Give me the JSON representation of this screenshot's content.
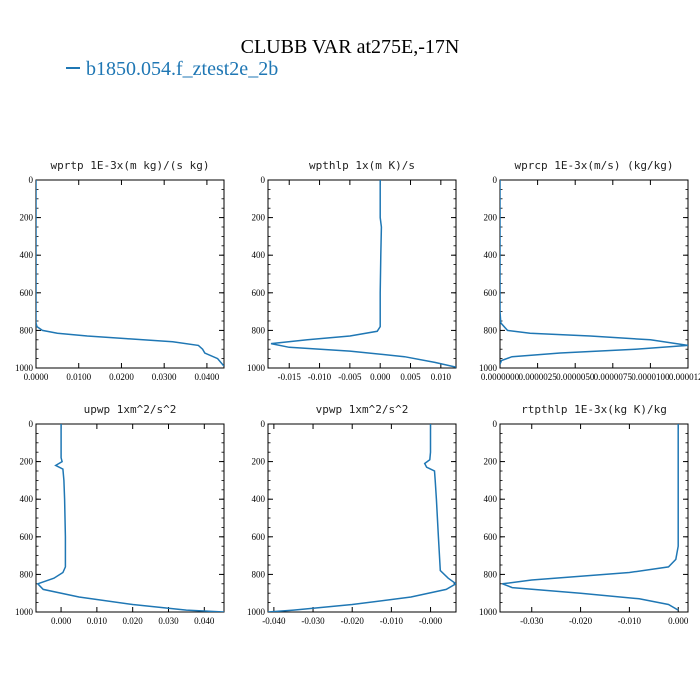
{
  "title": "CLUBB VAR at275E,-17N",
  "legend": {
    "label": "b1850.054.f_ztest2e_2b",
    "color": "#1f77b4"
  },
  "chart_data": [
    {
      "type": "line",
      "title": "wprtp  1E-3x(m kg)/(s kg)",
      "xlim": [
        0.0,
        0.044
      ],
      "ylim": [
        1000,
        0
      ],
      "xticks": [
        0.0,
        0.01,
        0.02,
        0.03,
        0.04
      ],
      "xticklabels": [
        "0.0000",
        "0.0100",
        "0.0200",
        "0.0300",
        "0.0400"
      ],
      "yticks": [
        0,
        200,
        400,
        600,
        800,
        1000
      ],
      "yticklabels": [
        "0",
        "200",
        "400",
        "600",
        "800",
        "1000"
      ],
      "series": [
        {
          "x": [
            0.0,
            0.0,
            0.0,
            0.0,
            0.0,
            0.0,
            0.0002,
            0.0015,
            0.005,
            0.012,
            0.022,
            0.032,
            0.038,
            0.039,
            0.0395,
            0.0425,
            0.044
          ],
          "y": [
            0,
            200,
            400,
            600,
            700,
            760,
            780,
            800,
            815,
            830,
            845,
            860,
            880,
            900,
            920,
            950,
            990
          ]
        }
      ]
    },
    {
      "type": "line",
      "title": "wpthlp  1x(m K)/s",
      "xlim": [
        -0.0185,
        0.0125
      ],
      "ylim": [
        1000,
        0
      ],
      "xticks": [
        -0.015,
        -0.01,
        -0.005,
        0.0,
        0.005,
        0.01
      ],
      "xticklabels": [
        "-0.015",
        "-0.010",
        "-0.005",
        "0.000",
        "0.005",
        "0.010"
      ],
      "yticks": [
        0,
        200,
        400,
        600,
        800,
        1000
      ],
      "yticklabels": [
        "0",
        "200",
        "400",
        "600",
        "800",
        "1000"
      ],
      "series": [
        {
          "x": [
            0.0,
            0.0,
            0.0002,
            0.0001,
            0.0,
            0.0,
            0.0,
            -0.0005,
            -0.005,
            -0.012,
            -0.018,
            -0.015,
            -0.005,
            0.004,
            0.009,
            0.0125
          ],
          "y": [
            0,
            200,
            250,
            400,
            600,
            760,
            780,
            805,
            830,
            850,
            870,
            890,
            910,
            940,
            970,
            995
          ]
        }
      ]
    },
    {
      "type": "line",
      "title": "wprcp  1E-3x(m/s) (kg/kg)",
      "xlim": [
        0.0,
        1.25e-05
      ],
      "ylim": [
        1000,
        0
      ],
      "xticks": [
        0.0,
        2.5e-06,
        5e-06,
        7.5e-06,
        1e-05,
        1.25e-05
      ],
      "xticklabels": [
        "0.0000000",
        "0.0000025",
        "0.0000050",
        "0.0000075",
        "0.0000100",
        "0.0000125"
      ],
      "yticks": [
        0,
        200,
        400,
        600,
        800,
        1000
      ],
      "yticklabels": [
        "0",
        "200",
        "400",
        "600",
        "800",
        "1000"
      ],
      "series": [
        {
          "x": [
            0.0,
            0.0,
            0.0,
            0.0,
            5e-08,
            5e-07,
            2e-06,
            6e-06,
            1e-05,
            1.25e-05,
            9e-06,
            4e-06,
            8e-07,
            1e-07,
            0.0
          ],
          "y": [
            0,
            200,
            400,
            700,
            760,
            800,
            815,
            830,
            850,
            880,
            900,
            920,
            940,
            960,
            980
          ]
        }
      ]
    },
    {
      "type": "line",
      "title": "upwp  1xm^2/s^2",
      "xlim": [
        -0.007,
        0.0455
      ],
      "ylim": [
        1000,
        0
      ],
      "xticks": [
        0.0,
        0.01,
        0.02,
        0.03,
        0.04
      ],
      "xticklabels": [
        "0.000",
        "0.010",
        "0.020",
        "0.030",
        "0.040"
      ],
      "yticks": [
        0,
        200,
        400,
        600,
        800,
        1000
      ],
      "yticklabels": [
        "0",
        "200",
        "400",
        "600",
        "800",
        "1000"
      ],
      "series": [
        {
          "x": [
            0.0,
            0.0,
            0.0,
            0.0003,
            -0.0015,
            0.0005,
            0.0008,
            0.001,
            0.0012,
            0.0012,
            0.0005,
            -0.002,
            -0.0065,
            -0.005,
            0.005,
            0.02,
            0.035,
            0.0455
          ],
          "y": [
            0,
            150,
            180,
            200,
            220,
            240,
            300,
            400,
            600,
            760,
            790,
            820,
            850,
            880,
            920,
            960,
            990,
            1000
          ]
        }
      ]
    },
    {
      "type": "line",
      "title": "vpwp  1xm^2/s^2",
      "xlim": [
        -0.0415,
        0.0065
      ],
      "ylim": [
        1000,
        0
      ],
      "xticks": [
        -0.04,
        -0.03,
        -0.02,
        -0.01,
        0.0
      ],
      "xticklabels": [
        "-0.040",
        "-0.030",
        "-0.020",
        "-0.010",
        "-0.000"
      ],
      "yticks": [
        0,
        200,
        400,
        600,
        800,
        1000
      ],
      "yticklabels": [
        "0",
        "200",
        "400",
        "600",
        "800",
        "1000"
      ],
      "series": [
        {
          "x": [
            0.0,
            0.0,
            -0.0002,
            -0.0015,
            -0.001,
            0.001,
            0.0012,
            0.0015,
            0.002,
            0.0025,
            0.0045,
            0.0065,
            0.004,
            -0.005,
            -0.02,
            -0.035,
            -0.0415
          ],
          "y": [
            0,
            150,
            190,
            210,
            230,
            250,
            300,
            400,
            600,
            780,
            820,
            850,
            880,
            920,
            960,
            990,
            1000
          ]
        }
      ]
    },
    {
      "type": "line",
      "title": "rtpthlp  1E-3x(kg K)/kg",
      "xlim": [
        -0.0365,
        0.002
      ],
      "ylim": [
        1000,
        0
      ],
      "xticks": [
        -0.03,
        -0.02,
        -0.01,
        0.0
      ],
      "xticklabels": [
        "-0.030",
        "-0.020",
        "-0.010",
        "0.000"
      ],
      "yticks": [
        0,
        200,
        400,
        600,
        800,
        1000
      ],
      "yticklabels": [
        "0",
        "200",
        "400",
        "600",
        "800",
        "1000"
      ],
      "series": [
        {
          "x": [
            0.0,
            0.0,
            0.0,
            -0.0005,
            -0.002,
            -0.01,
            -0.03,
            -0.036,
            -0.034,
            -0.02,
            -0.008,
            -0.002,
            0.0
          ],
          "y": [
            0,
            400,
            650,
            720,
            760,
            790,
            830,
            850,
            870,
            900,
            930,
            960,
            990
          ]
        }
      ]
    }
  ]
}
